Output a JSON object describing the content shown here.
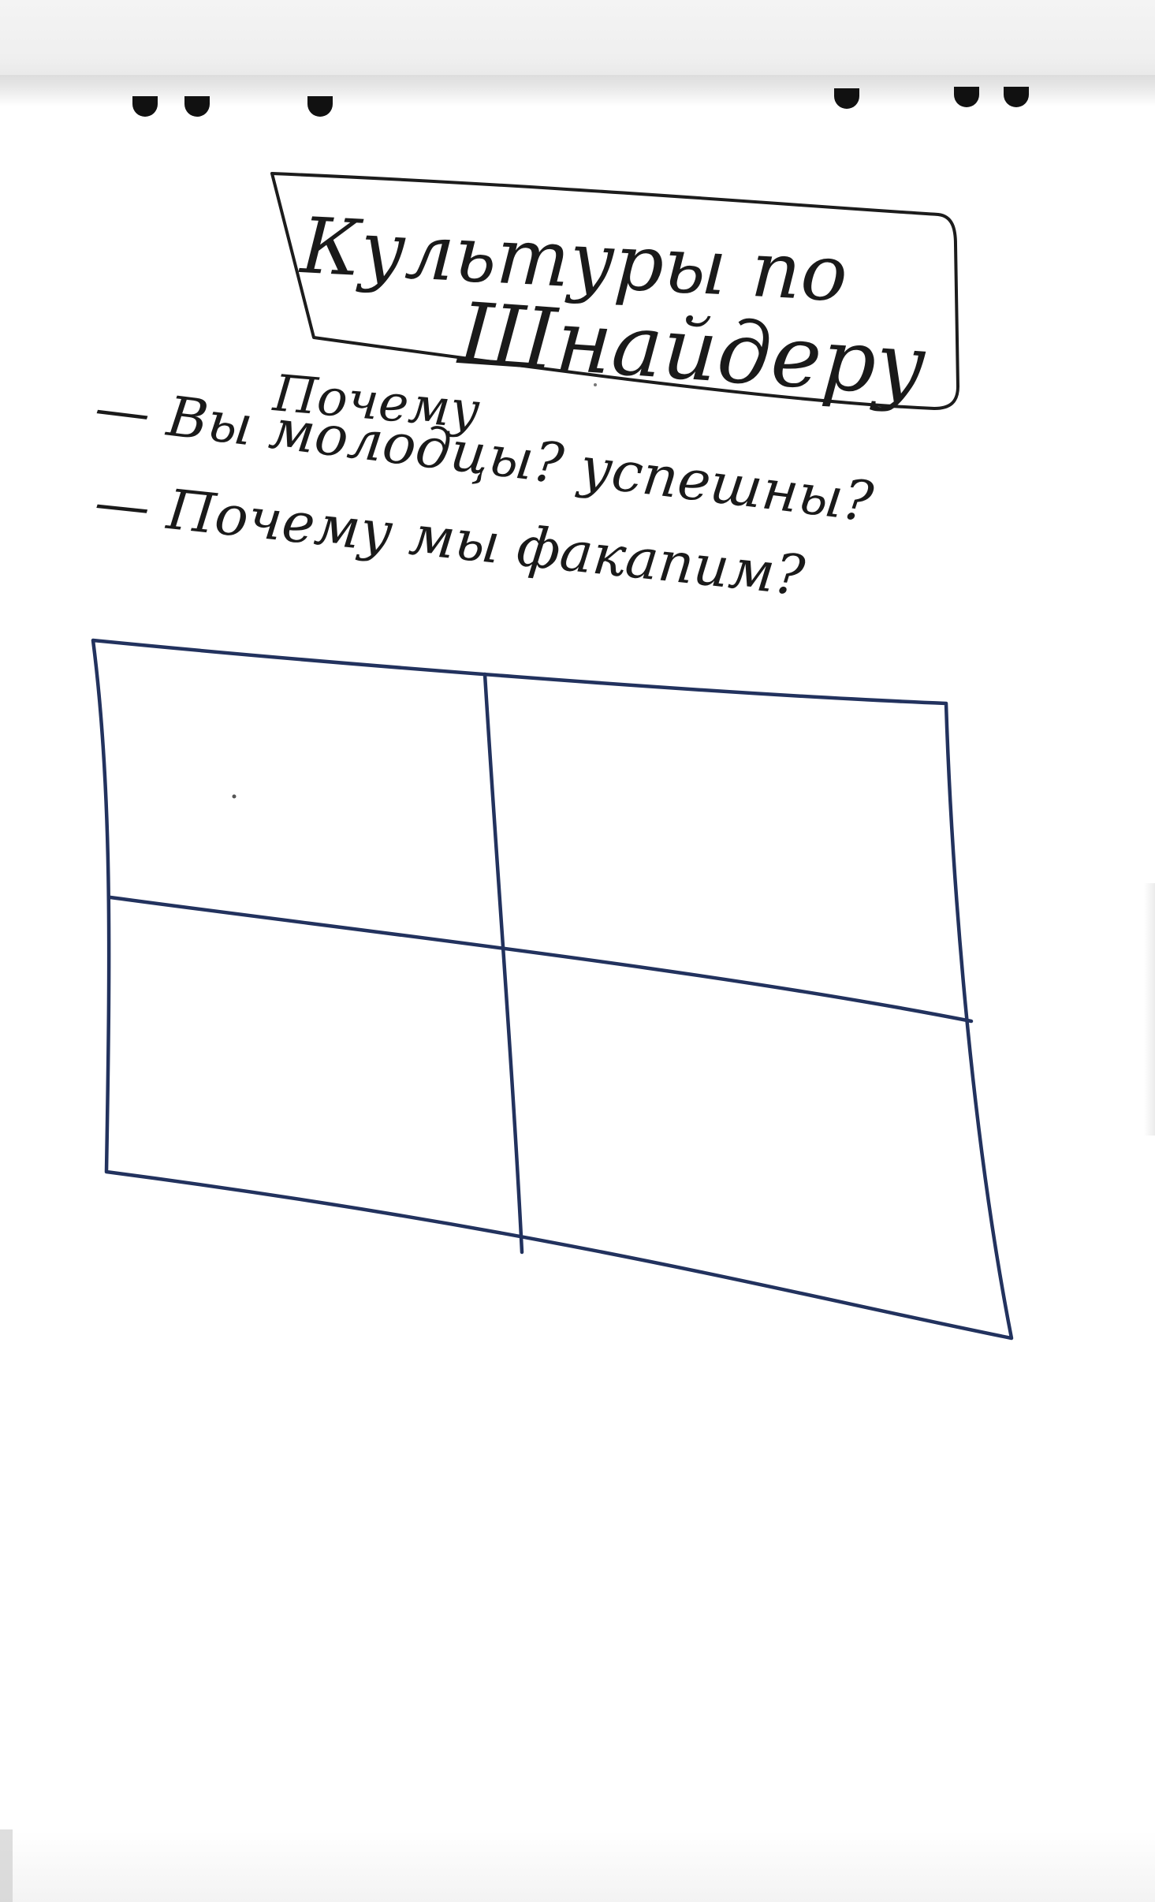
{
  "sheet": {
    "title_line_1": "Культуры по",
    "title_line_2": "Шнайдеру",
    "bullet_1_insert": "Почему",
    "bullet_1": "— Вы молодцы? успешны?",
    "bullet_2": "— Почему мы факапим?"
  },
  "colors": {
    "paper": "#ffffff",
    "black_marker": "#1c1c1c",
    "blue_marker": "#22325e"
  }
}
